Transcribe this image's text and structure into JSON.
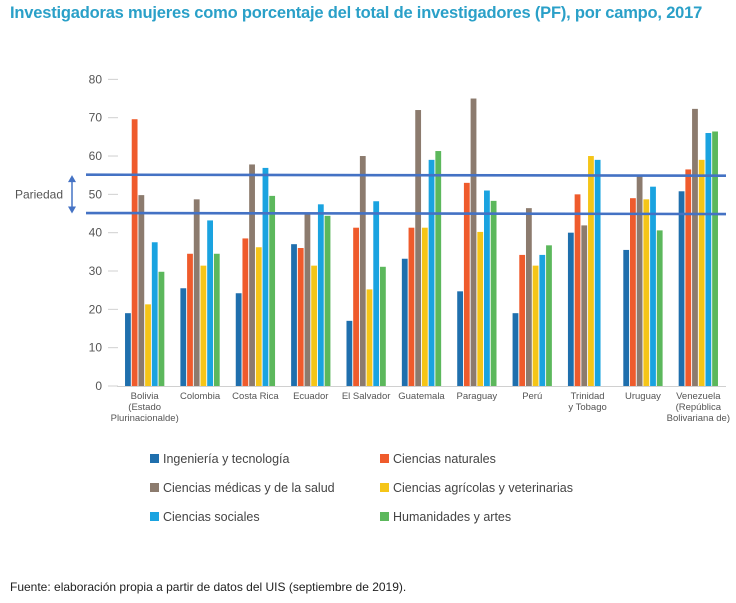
{
  "title": "Investigadoras mujeres como porcentaje del total de investigadores (PF), por campo, 2017",
  "source": "Fuente: elaboración propia a partir de datos del UIS (septiembre de 2019).",
  "chart_data": {
    "type": "bar",
    "ylim": [
      0,
      80
    ],
    "yticks": [
      "0",
      "10",
      "20",
      "30",
      "40",
      "50",
      "60",
      "70",
      "80"
    ],
    "grid": false,
    "legend_placement": "bottom",
    "categories": [
      [
        "Bolivia",
        "(Estado",
        "Plurinacionalde)"
      ],
      [
        "Colombia"
      ],
      [
        "Costa Rica"
      ],
      [
        "Ecuador"
      ],
      [
        "El Salvador"
      ],
      [
        "Guatemala"
      ],
      [
        "Paraguay"
      ],
      [
        "Perú"
      ],
      [
        "Trinidad",
        "y Tobago"
      ],
      [
        "Uruguay"
      ],
      [
        "Venezuela",
        "(República",
        "Bolivariana de)"
      ]
    ],
    "series": [
      {
        "name": "Ingeniería y tecnología",
        "color": "#1f6fad",
        "values": [
          19,
          25.5,
          24.2,
          37,
          17,
          33.2,
          24.7,
          19,
          40,
          35.5,
          50.8
        ]
      },
      {
        "name": "Ciencias naturales",
        "color": "#ef5b2c",
        "values": [
          69.6,
          34.5,
          38.5,
          36,
          41.3,
          41.3,
          53,
          34.2,
          50,
          49,
          56.5
        ]
      },
      {
        "name": "Ciencias médicas y de la salud",
        "color": "#8c7b6e",
        "values": [
          49.8,
          48.7,
          57.8,
          45,
          60,
          72,
          75,
          46.4,
          41.9,
          55,
          72.3
        ]
      },
      {
        "name": "Ciencias agrícolas y veterinarias",
        "color": "#f5c518",
        "values": [
          21.3,
          31.4,
          36.2,
          31.4,
          25.2,
          41.3,
          40.2,
          31.4,
          60,
          48.7,
          59
        ]
      },
      {
        "name": "Ciencias sociales",
        "color": "#1aa3e0",
        "values": [
          37.5,
          43.2,
          56.9,
          47.4,
          48.2,
          59,
          51,
          34.2,
          59,
          52,
          66
        ]
      },
      {
        "name": "Humanidades y artes",
        "color": "#5cb85c",
        "values": [
          29.8,
          34.5,
          49.6,
          44.4,
          31.1,
          61.3,
          48.3,
          36.7,
          null,
          40.6,
          66.4
        ]
      }
    ],
    "reference_band": {
      "label": "Pariedad",
      "lower": 45,
      "upper": 55,
      "color": "#4472c4"
    }
  }
}
